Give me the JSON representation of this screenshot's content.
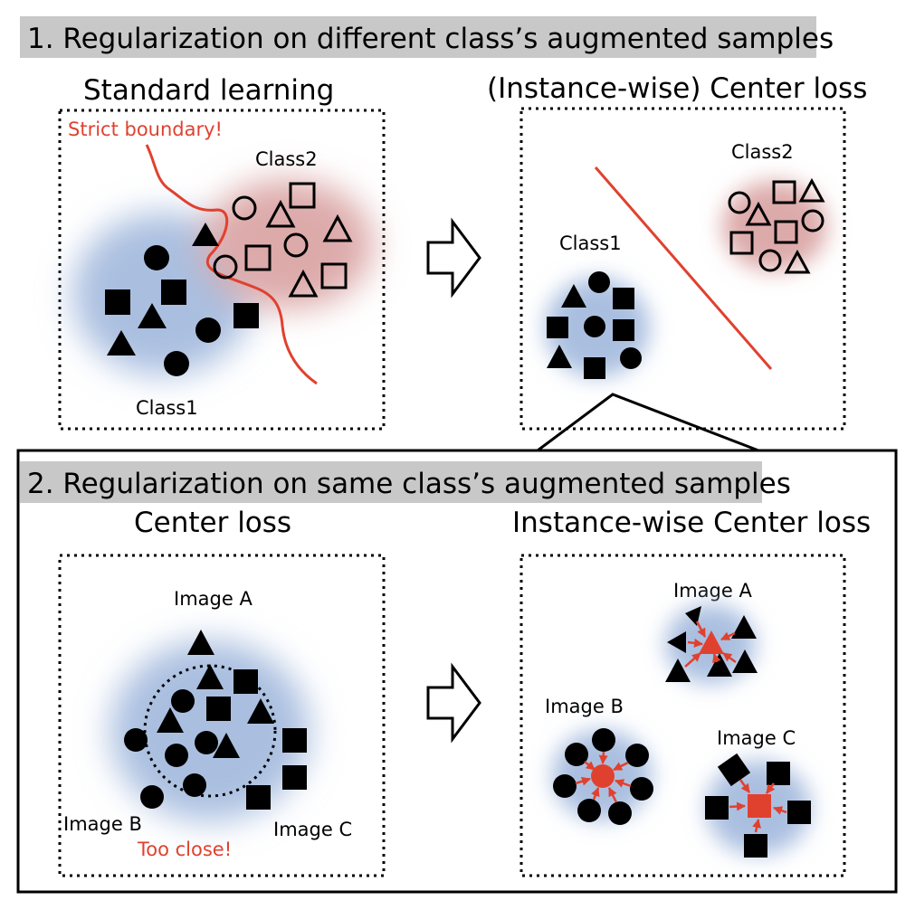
{
  "section1": {
    "title": "1. Regularization on different class’s augmented samples",
    "left": {
      "heading": "Standard learning",
      "note": "Strict boundary!",
      "class1_label": "Class1",
      "class2_label": "Class2"
    },
    "right": {
      "heading": "(Instance-wise) Center loss",
      "class1_label": "Class1",
      "class2_label": "Class2"
    }
  },
  "section2": {
    "title": "2. Regularization on same class’s augmented samples",
    "left": {
      "heading": "Center loss",
      "image_a_label": "Image A",
      "image_b_label": "Image B",
      "image_c_label": "Image C",
      "note": "Too close!"
    },
    "right": {
      "heading": "Instance-wise Center loss",
      "image_a_label": "Image A",
      "image_b_label": "Image B",
      "image_c_label": "Image C"
    }
  },
  "colors": {
    "title_bar": "#c8c8c8",
    "accent_red": "#e0412f",
    "blob_blue": "#aabfe0",
    "blob_pink": "#ddaaaa",
    "ink": "#000000"
  }
}
